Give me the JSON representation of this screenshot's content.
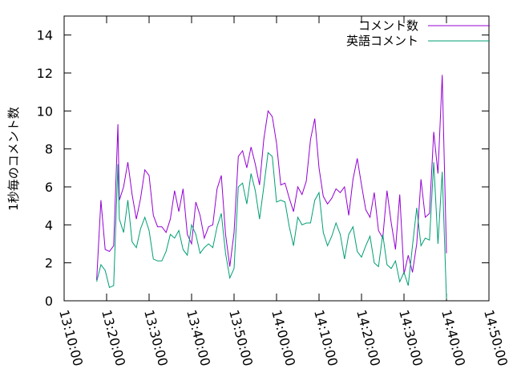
{
  "chart_data": {
    "type": "line",
    "title": "",
    "xlabel": "",
    "ylabel": "1秒毎のコメント数",
    "xlim": [
      "13:10:00",
      "14:50:00"
    ],
    "ylim": [
      0,
      15
    ],
    "x_ticks": [
      "13:10:00",
      "13:20:00",
      "13:30:00",
      "13:40:00",
      "13:50:00",
      "14:00:00",
      "14:10:00",
      "14:20:00",
      "14:30:00",
      "14:40:00",
      "14:50:00"
    ],
    "y_ticks": [
      0,
      2,
      4,
      6,
      8,
      10,
      12,
      14
    ],
    "legend_position": "top-right",
    "grid": false,
    "x": [
      "13:17:40",
      "13:18:40",
      "13:19:40",
      "13:20:40",
      "13:21:40",
      "13:22:40",
      "13:23:00",
      "13:24:00",
      "13:25:00",
      "13:26:00",
      "13:27:00",
      "13:28:00",
      "13:29:00",
      "13:30:00",
      "13:31:00",
      "13:32:00",
      "13:33:00",
      "13:34:00",
      "13:35:00",
      "13:36:00",
      "13:37:00",
      "13:38:00",
      "13:39:00",
      "13:40:00",
      "13:41:00",
      "13:42:00",
      "13:43:00",
      "13:44:00",
      "13:45:00",
      "13:46:00",
      "13:47:00",
      "13:48:00",
      "13:49:00",
      "13:50:00",
      "13:51:00",
      "13:52:00",
      "13:53:00",
      "13:54:00",
      "13:55:00",
      "13:56:00",
      "13:57:00",
      "13:58:00",
      "13:59:00",
      "14:00:00",
      "14:01:00",
      "14:02:00",
      "14:03:00",
      "14:04:00",
      "14:05:00",
      "14:06:00",
      "14:07:00",
      "14:08:00",
      "14:09:00",
      "14:10:00",
      "14:11:00",
      "14:12:00",
      "14:13:00",
      "14:14:00",
      "14:15:00",
      "14:16:00",
      "14:17:00",
      "14:18:00",
      "14:19:00",
      "14:20:00",
      "14:21:00",
      "14:22:00",
      "14:23:00",
      "14:24:00",
      "14:25:00",
      "14:26:00",
      "14:27:00",
      "14:28:00",
      "14:29:00",
      "14:30:00",
      "14:31:00",
      "14:32:00",
      "14:33:00",
      "14:34:00",
      "14:35:00",
      "14:36:00",
      "14:37:00",
      "14:38:00",
      "14:39:00",
      "14:40:00"
    ],
    "series": [
      {
        "name": "コメント数",
        "color": "#9400d3",
        "values": [
          1.1,
          5.3,
          2.7,
          2.6,
          2.9,
          9.3,
          5.3,
          6.0,
          7.3,
          5.6,
          4.3,
          5.4,
          6.9,
          6.6,
          4.5,
          3.9,
          3.9,
          3.6,
          4.3,
          5.8,
          4.7,
          5.9,
          3.5,
          3.0,
          5.2,
          4.5,
          3.3,
          3.9,
          4.0,
          5.9,
          6.6,
          3.5,
          1.8,
          3.6,
          7.6,
          7.9,
          7.0,
          8.1,
          7.2,
          6.1,
          8.5,
          10.0,
          9.7,
          8.3,
          6.1,
          6.2,
          5.4,
          4.7,
          6.0,
          5.6,
          6.3,
          8.5,
          9.6,
          7.0,
          5.5,
          5.1,
          5.4,
          5.9,
          5.7,
          6.0,
          4.5,
          6.4,
          7.5,
          6.1,
          4.8,
          4.4,
          5.7,
          3.7,
          3.3,
          5.8,
          4.1,
          2.7,
          5.6,
          1.4,
          2.4,
          1.5,
          3.0,
          6.4,
          4.4,
          4.6,
          8.9,
          6.7,
          11.9,
          2.5
        ]
      },
      {
        "name": "英語コメント",
        "color": "#009e73",
        "values": [
          1.0,
          1.9,
          1.6,
          0.7,
          0.8,
          7.2,
          4.3,
          3.6,
          5.3,
          3.1,
          2.8,
          3.8,
          4.4,
          3.7,
          2.2,
          2.1,
          2.1,
          2.6,
          3.5,
          3.3,
          3.7,
          2.7,
          2.4,
          4.0,
          3.5,
          2.5,
          2.8,
          3.0,
          2.8,
          3.9,
          4.6,
          2.5,
          1.2,
          1.7,
          6.0,
          6.2,
          5.1,
          6.7,
          5.8,
          4.3,
          6.0,
          7.8,
          7.6,
          5.2,
          5.3,
          5.2,
          3.9,
          2.9,
          4.4,
          4.0,
          4.1,
          4.1,
          5.3,
          5.7,
          3.6,
          2.9,
          3.4,
          4.1,
          3.5,
          2.2,
          3.5,
          3.9,
          2.6,
          2.3,
          2.9,
          3.4,
          2.0,
          1.8,
          3.5,
          1.9,
          1.7,
          2.1,
          1.0,
          1.5,
          0.8,
          2.9,
          4.9,
          2.9,
          3.3,
          3.2,
          7.3,
          3.0,
          6.8,
          0.1
        ]
      }
    ]
  }
}
